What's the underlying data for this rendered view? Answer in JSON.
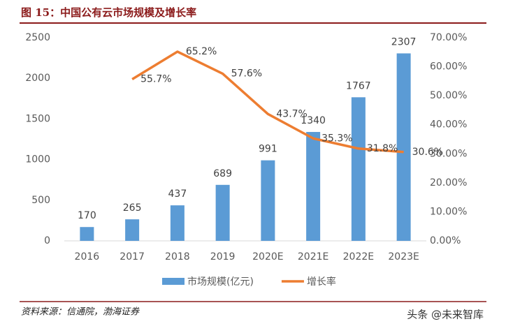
{
  "title": "图 15：中国公有云市场规模及增长率",
  "source": "资料来源：信通院，渤海证券",
  "watermark": "头条 @未来智库",
  "chart_data": {
    "type": "bar-line",
    "categories": [
      "2016",
      "2017",
      "2018",
      "2019",
      "2020E",
      "2021E",
      "2022E",
      "2023E"
    ],
    "series": [
      {
        "name": "市场规模(亿元)",
        "type": "bar",
        "color": "#5b9bd5",
        "values": [
          170,
          265,
          437,
          689,
          991,
          1340,
          1767,
          2307
        ]
      },
      {
        "name": "增长率",
        "type": "line",
        "axis": "y2",
        "color": "#ed7d31",
        "values": [
          null,
          55.7,
          65.2,
          57.6,
          43.7,
          35.3,
          31.8,
          30.6
        ],
        "value_labels": [
          null,
          "55.7%",
          "65.2%",
          "57.6%",
          "43.7%",
          "35.3%",
          "31.8%",
          "30.6%"
        ]
      }
    ],
    "ylim": [
      0,
      2500
    ],
    "yticks": [
      0,
      500,
      1000,
      1500,
      2000,
      2500
    ],
    "y2lim": [
      0,
      70
    ],
    "y2ticks": [
      {
        "value": 0,
        "label": "0.00%"
      },
      {
        "value": 10,
        "label": "10.00%"
      },
      {
        "value": 20,
        "label": "20.00%"
      },
      {
        "value": 30,
        "label": "30.00%"
      },
      {
        "value": 40,
        "label": "40.00%"
      },
      {
        "value": 50,
        "label": "50.00%"
      },
      {
        "value": 60,
        "label": "60.00%"
      },
      {
        "value": 70,
        "label": "70.00%"
      }
    ],
    "legend": "bottom"
  }
}
